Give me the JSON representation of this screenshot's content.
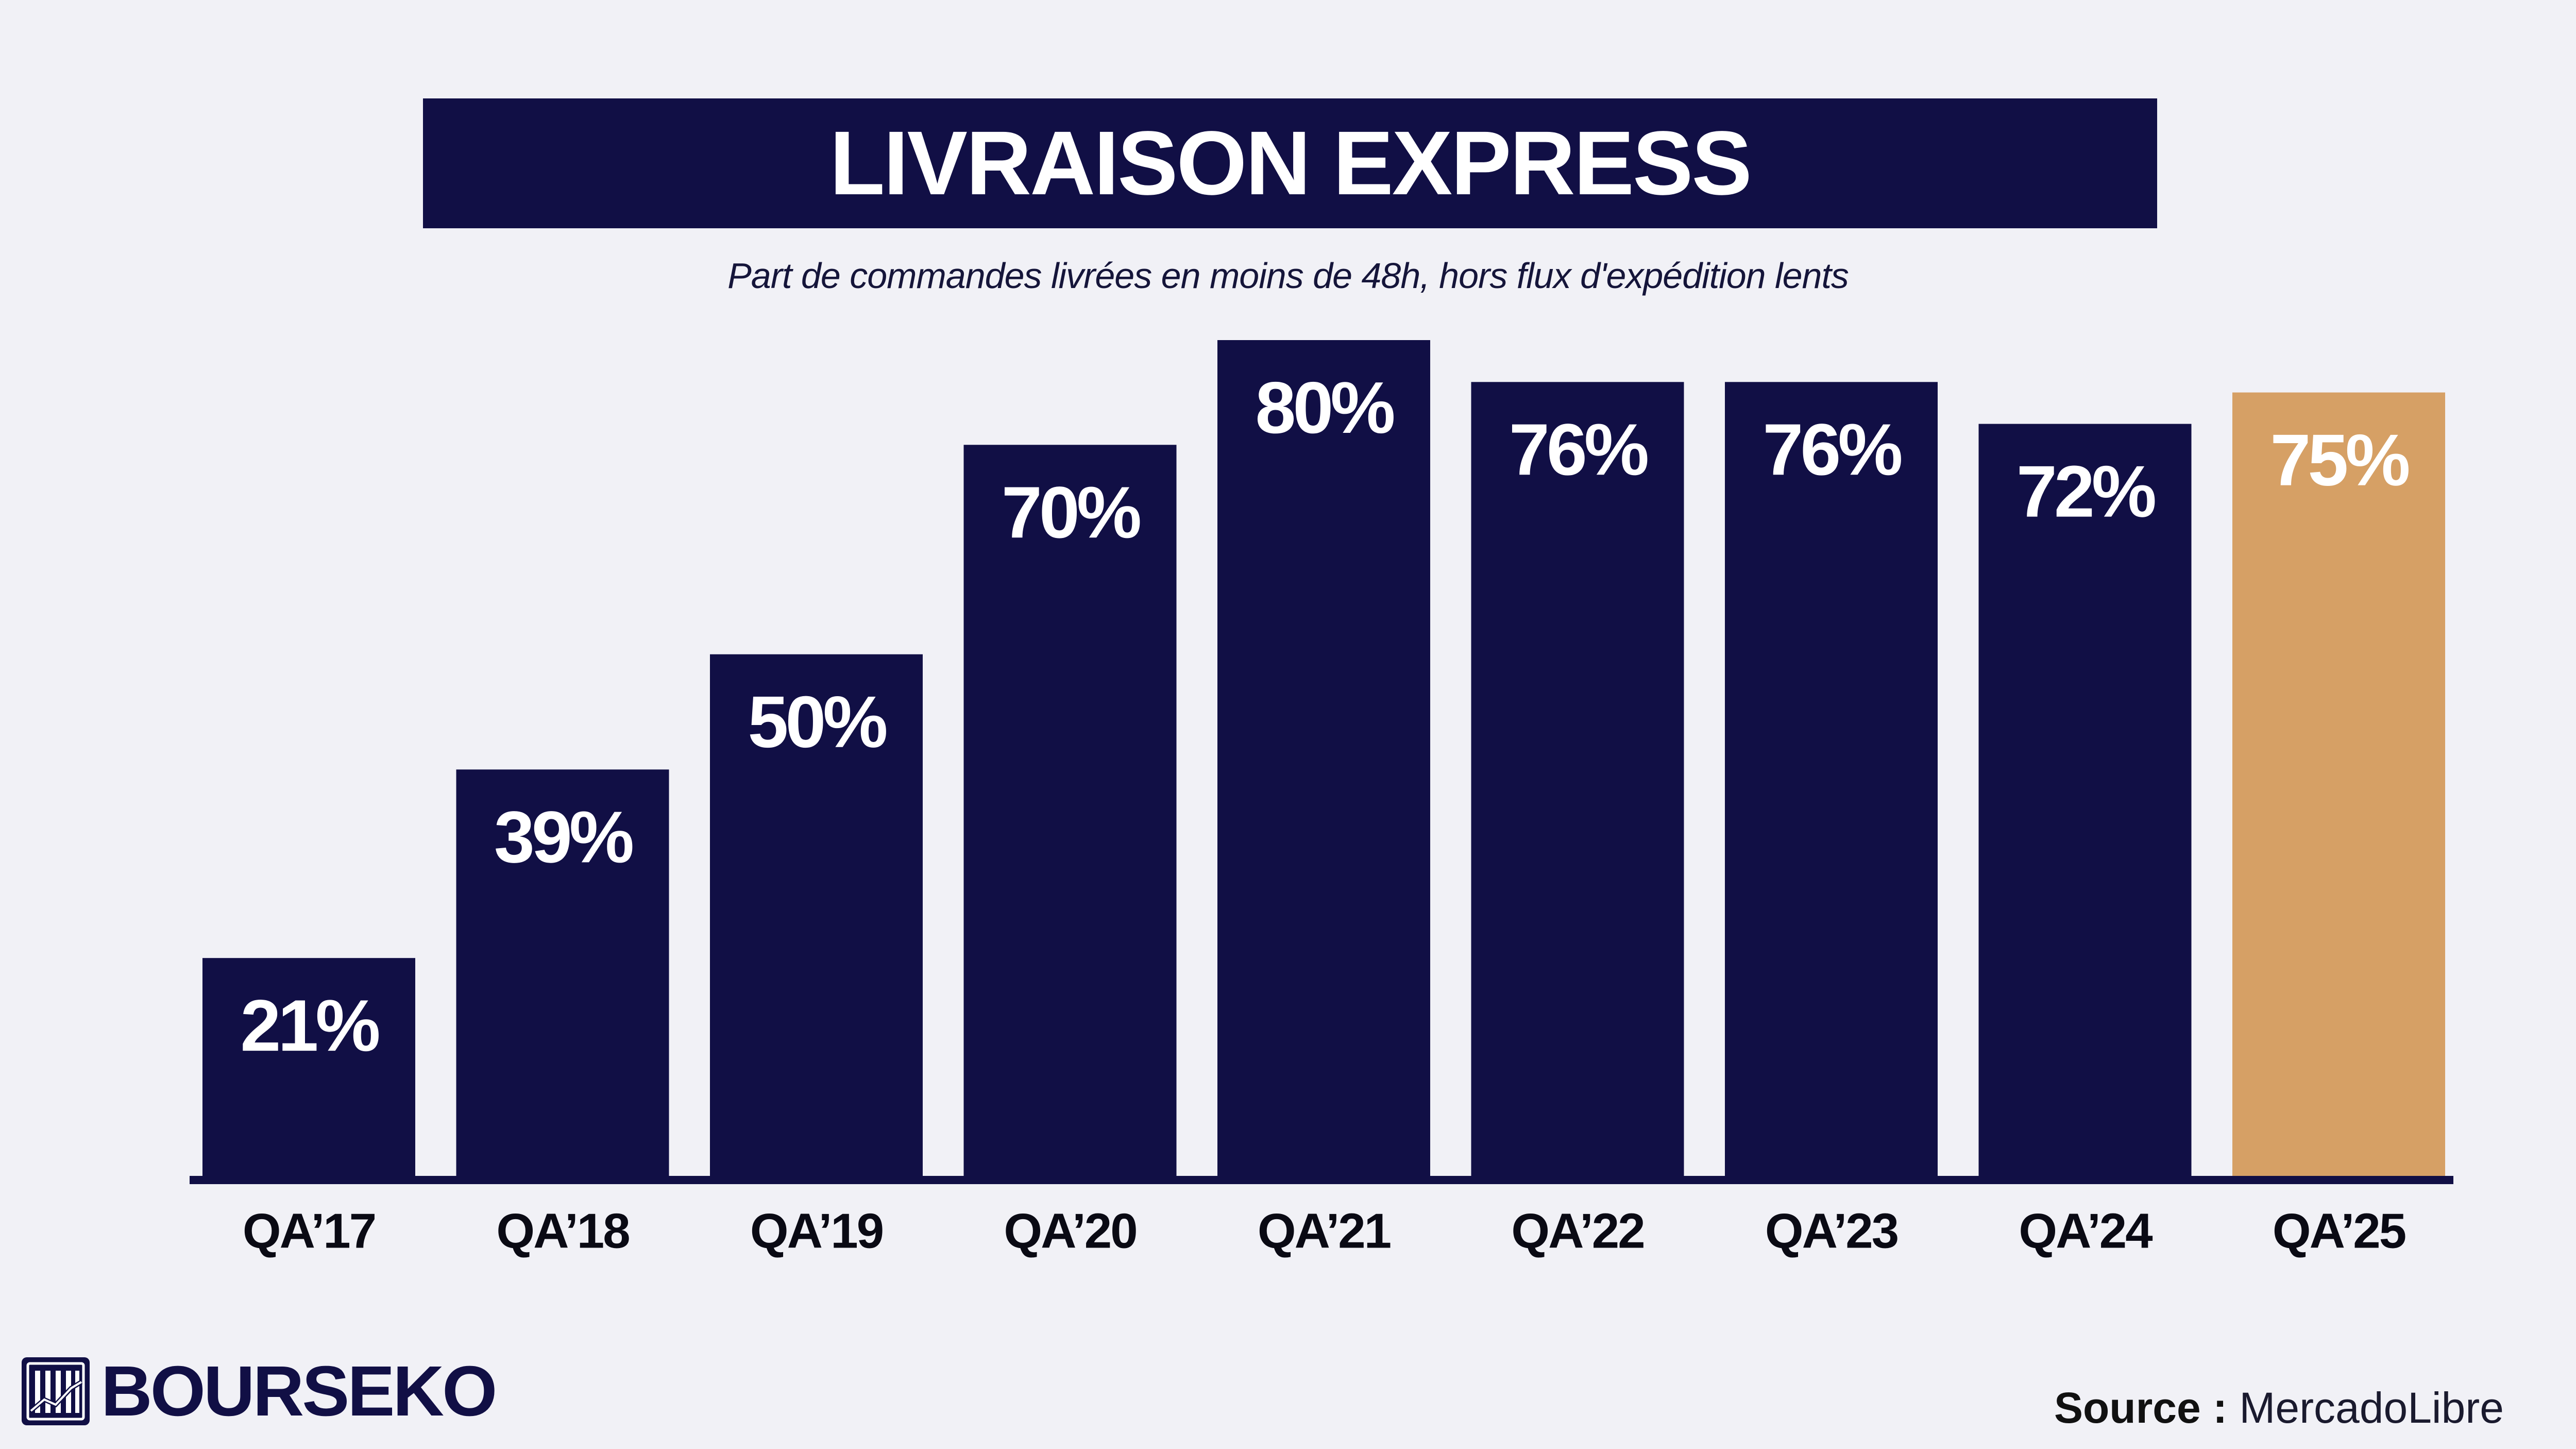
{
  "header": {
    "title": "LIVRAISON EXPRESS",
    "subtitle": "Part de commandes livrées en moins de 48h, hors flux d'expédition lents"
  },
  "chart_data": {
    "type": "bar",
    "categories": [
      "QA’17",
      "QA’18",
      "QA’19",
      "QA’20",
      "QA’21",
      "QA’22",
      "QA’23",
      "QA’24",
      "QA’25"
    ],
    "values": [
      21,
      39,
      50,
      70,
      80,
      76,
      76,
      72,
      75
    ],
    "value_labels": [
      "21%",
      "39%",
      "50%",
      "70%",
      "80%",
      "76%",
      "76%",
      "72%",
      "75%"
    ],
    "title": "LIVRAISON EXPRESS",
    "subtitle": "Part de commandes livrées en moins de 48h, hors flux d'expédition lents",
    "xlabel": "",
    "ylabel": "",
    "ylim": [
      0,
      80
    ],
    "grid": false,
    "legend": "none",
    "colors": {
      "bar": "#110f45",
      "highlight": "#d6a065",
      "highlight_index": 8,
      "label": "#ffffff",
      "axis": "#110f45",
      "tick_label": "#0a0a14"
    }
  },
  "footer": {
    "brand": "BOURSEKO",
    "source_label": "Source :",
    "source_value": "MercadoLibre"
  }
}
